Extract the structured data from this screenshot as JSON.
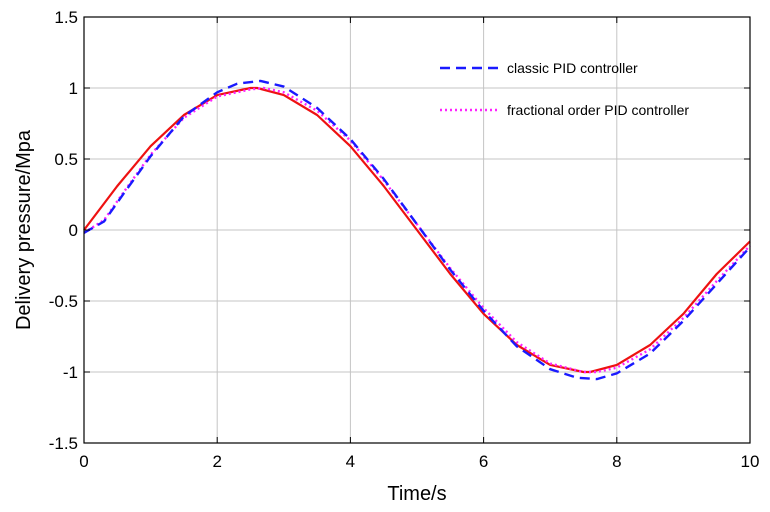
{
  "chart_data": {
    "type": "line",
    "title": "",
    "xlabel": "Time/s",
    "ylabel": "Delivery pressure/Mpa",
    "xlim": [
      0,
      10
    ],
    "ylim": [
      -1.5,
      1.5
    ],
    "xticks": [
      0,
      2,
      4,
      6,
      8,
      10
    ],
    "yticks": [
      -1.5,
      -1,
      -0.5,
      0,
      0.5,
      1,
      1.5
    ],
    "xtick_labels": [
      "0",
      "2",
      "4",
      "6",
      "8",
      "10"
    ],
    "ytick_labels": [
      "-1.5",
      "-1",
      "-0.5",
      "0",
      "0.5",
      "1",
      "1.5"
    ],
    "grid": true,
    "legend_position": "top-right",
    "series": [
      {
        "name": "",
        "color": "#ee1111",
        "style": "solid",
        "x": [
          0,
          0.5,
          1,
          1.5,
          2,
          2.5,
          2.6,
          3,
          3.5,
          4,
          4.5,
          5,
          5.5,
          6,
          6.5,
          7,
          7.5,
          7.6,
          8,
          8.5,
          9,
          9.5,
          10
        ],
        "y": [
          0,
          0.31,
          0.59,
          0.81,
          0.95,
          1.0,
          1.0,
          0.95,
          0.81,
          0.59,
          0.31,
          0.0,
          -0.31,
          -0.59,
          -0.81,
          -0.95,
          -1.0,
          -1.0,
          -0.95,
          -0.81,
          -0.59,
          -0.31,
          -0.08
        ]
      },
      {
        "name": "classic PID controller",
        "color": "#1a1aff",
        "style": "dashed",
        "x": [
          0,
          0.3,
          0.6,
          1,
          1.5,
          2,
          2.3,
          2.65,
          3,
          3.5,
          4,
          4.5,
          5,
          5.5,
          6,
          6.5,
          7,
          7.4,
          7.7,
          8,
          8.5,
          9,
          9.5,
          10
        ],
        "y": [
          -0.02,
          0.06,
          0.26,
          0.52,
          0.8,
          0.97,
          1.03,
          1.05,
          1.01,
          0.86,
          0.64,
          0.36,
          0.04,
          -0.28,
          -0.57,
          -0.82,
          -0.98,
          -1.04,
          -1.05,
          -1.01,
          -0.87,
          -0.64,
          -0.38,
          -0.12
        ]
      },
      {
        "name": "fractional order PID controller",
        "color": "#ff22ff",
        "style": "dotted",
        "x": [
          0,
          0.3,
          0.6,
          1,
          1.5,
          2,
          2.5,
          2.7,
          3,
          3.5,
          4,
          4.5,
          5,
          5.5,
          6,
          6.5,
          7,
          7.5,
          7.7,
          8,
          8.5,
          9,
          9.5,
          10
        ],
        "y": [
          -0.02,
          0.07,
          0.27,
          0.53,
          0.79,
          0.94,
          0.99,
          1.0,
          0.97,
          0.84,
          0.63,
          0.35,
          0.04,
          -0.27,
          -0.55,
          -0.79,
          -0.94,
          -1.0,
          -1.0,
          -0.97,
          -0.84,
          -0.62,
          -0.36,
          -0.11
        ]
      }
    ]
  }
}
